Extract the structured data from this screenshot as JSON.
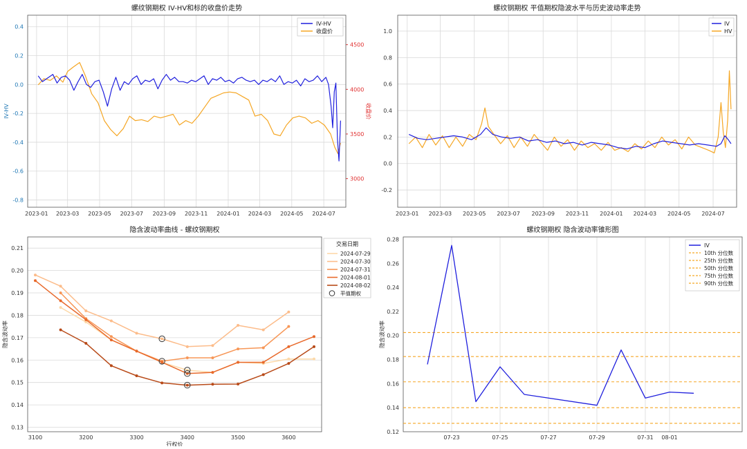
{
  "chart_data": [
    {
      "id": "c1",
      "type": "line",
      "title": "螺纹钢期权 IV-HV和标的收盘价走势",
      "ylabel": "IV-HV",
      "ylabel2": "收盘价",
      "ylim": [
        -0.85,
        0.48
      ],
      "ylim2": [
        2680,
        4830
      ],
      "xlim": [
        "2022-12-15",
        "2024-08-12"
      ],
      "yticks": [
        "-0.8",
        "-0.6",
        "-0.4",
        "-0.2",
        "0.0",
        "0.2",
        "0.4"
      ],
      "ytick_values": [
        -0.8,
        -0.6,
        -0.4,
        -0.2,
        0.0,
        0.2,
        0.4
      ],
      "y2ticks": [
        "3000",
        "3500",
        "4000",
        "4500"
      ],
      "y2tick_values": [
        3000,
        3500,
        4000,
        4500
      ],
      "xticks": [
        "2023-01",
        "2023-03",
        "2023-05",
        "2023-07",
        "2023-09",
        "2023-11",
        "2024-01",
        "2024-03",
        "2024-05",
        "2024-07"
      ],
      "xtick_dates": [
        "2023-01-01",
        "2023-03-01",
        "2023-05-01",
        "2023-07-01",
        "2023-09-01",
        "2023-11-01",
        "2024-01-01",
        "2024-03-01",
        "2024-05-01",
        "2024-07-01"
      ],
      "legend": "top-right",
      "series": [
        {
          "name": "IV-HV",
          "color": "#1f1fdd",
          "axis": "left",
          "x": [
            "2023-01-04",
            "2023-01-12",
            "2023-01-20",
            "2023-02-01",
            "2023-02-09",
            "2023-02-17",
            "2023-02-25",
            "2023-03-05",
            "2023-03-13",
            "2023-03-21",
            "2023-03-29",
            "2023-04-06",
            "2023-04-14",
            "2023-04-22",
            "2023-04-30",
            "2023-05-08",
            "2023-05-16",
            "2023-05-24",
            "2023-06-01",
            "2023-06-09",
            "2023-06-17",
            "2023-06-25",
            "2023-07-03",
            "2023-07-11",
            "2023-07-19",
            "2023-07-27",
            "2023-08-04",
            "2023-08-12",
            "2023-08-20",
            "2023-08-28",
            "2023-09-05",
            "2023-09-13",
            "2023-09-21",
            "2023-09-29",
            "2023-10-07",
            "2023-10-15",
            "2023-10-23",
            "2023-10-31",
            "2023-11-08",
            "2023-11-16",
            "2023-11-24",
            "2023-12-02",
            "2023-12-10",
            "2023-12-18",
            "2023-12-26",
            "2024-01-03",
            "2024-01-11",
            "2024-01-19",
            "2024-01-27",
            "2024-02-04",
            "2024-02-12",
            "2024-02-20",
            "2024-02-28",
            "2024-03-07",
            "2024-03-15",
            "2024-03-23",
            "2024-03-31",
            "2024-04-08",
            "2024-04-16",
            "2024-04-24",
            "2024-05-02",
            "2024-05-10",
            "2024-05-18",
            "2024-05-26",
            "2024-06-03",
            "2024-06-11",
            "2024-06-19",
            "2024-06-27",
            "2024-07-05",
            "2024-07-10",
            "2024-07-15",
            "2024-07-18",
            "2024-07-21",
            "2024-07-24",
            "2024-07-27",
            "2024-07-30",
            "2024-08-02"
          ],
          "y": [
            0.06,
            0.02,
            0.04,
            0.07,
            0.01,
            0.05,
            0.06,
            0.03,
            -0.04,
            0.02,
            0.07,
            0.0,
            -0.02,
            0.02,
            0.03,
            -0.05,
            -0.15,
            -0.03,
            0.05,
            -0.04,
            0.02,
            0.0,
            0.04,
            0.06,
            0.0,
            0.03,
            0.02,
            0.04,
            -0.03,
            0.03,
            0.07,
            0.03,
            0.05,
            0.02,
            0.02,
            0.01,
            0.03,
            0.02,
            0.04,
            0.06,
            0.0,
            0.04,
            0.03,
            0.05,
            0.02,
            0.03,
            0.01,
            0.04,
            0.05,
            0.03,
            0.02,
            0.03,
            0.0,
            0.03,
            0.02,
            0.04,
            0.02,
            0.06,
            0.0,
            0.02,
            0.01,
            0.03,
            -0.01,
            0.04,
            0.02,
            0.03,
            0.06,
            0.02,
            0.05,
            0.0,
            -0.15,
            -0.3,
            -0.05,
            0.01,
            -0.38,
            -0.53,
            -0.25
          ]
        },
        {
          "name": "收盘价",
          "color": "#f5a623",
          "axis": "right",
          "x": [
            "2023-01-04",
            "2023-01-15",
            "2023-01-27",
            "2023-02-08",
            "2023-02-20",
            "2023-03-01",
            "2023-03-12",
            "2023-03-24",
            "2023-04-04",
            "2023-04-16",
            "2023-04-28",
            "2023-05-10",
            "2023-05-22",
            "2023-06-03",
            "2023-06-15",
            "2023-06-27",
            "2023-07-08",
            "2023-07-20",
            "2023-08-01",
            "2023-08-13",
            "2023-08-25",
            "2023-09-06",
            "2023-09-18",
            "2023-09-30",
            "2023-10-12",
            "2023-10-24",
            "2023-11-05",
            "2023-11-17",
            "2023-11-29",
            "2023-12-11",
            "2023-12-23",
            "2024-01-04",
            "2024-01-16",
            "2024-01-28",
            "2024-02-09",
            "2024-02-21",
            "2024-03-04",
            "2024-03-16",
            "2024-03-28",
            "2024-04-09",
            "2024-04-21",
            "2024-05-03",
            "2024-05-15",
            "2024-05-27",
            "2024-06-08",
            "2024-06-20",
            "2024-07-02",
            "2024-07-14",
            "2024-07-22",
            "2024-07-28",
            "2024-08-02"
          ],
          "y": [
            4050,
            4120,
            4100,
            4150,
            4080,
            4200,
            4250,
            4300,
            4150,
            3950,
            3850,
            3650,
            3550,
            3480,
            3560,
            3700,
            3650,
            3660,
            3640,
            3700,
            3680,
            3700,
            3720,
            3600,
            3650,
            3620,
            3700,
            3800,
            3900,
            3930,
            3960,
            3970,
            3960,
            3920,
            3880,
            3700,
            3720,
            3650,
            3500,
            3480,
            3600,
            3680,
            3700,
            3680,
            3620,
            3650,
            3600,
            3500,
            3350,
            3280,
            3400
          ]
        }
      ]
    },
    {
      "id": "c2",
      "type": "line",
      "title": "螺纹钢期权 平值期权隐波水平与历史波动率走势",
      "ylim": [
        -0.33,
        1.12
      ],
      "xlim": [
        "2022-12-15",
        "2024-08-12"
      ],
      "yticks": [
        "-0.2",
        "0.0",
        "0.2",
        "0.4",
        "0.6",
        "0.8",
        "1.0"
      ],
      "ytick_values": [
        -0.2,
        0.0,
        0.2,
        0.4,
        0.6,
        0.8,
        1.0
      ],
      "xticks": [
        "2023-01",
        "2023-03",
        "2023-05",
        "2023-07",
        "2023-09",
        "2023-11",
        "2024-01",
        "2024-03",
        "2024-05",
        "2024-07"
      ],
      "xtick_dates": [
        "2023-01-01",
        "2023-03-01",
        "2023-05-01",
        "2023-07-01",
        "2023-09-01",
        "2023-11-01",
        "2024-01-01",
        "2024-03-01",
        "2024-05-01",
        "2024-07-01"
      ],
      "legend": "top-right",
      "series": [
        {
          "name": "IV",
          "color": "#1f1fdd",
          "x": [
            "2023-01-04",
            "2023-01-20",
            "2023-02-05",
            "2023-02-21",
            "2023-03-09",
            "2023-03-25",
            "2023-04-10",
            "2023-04-26",
            "2023-05-12",
            "2023-05-22",
            "2023-06-03",
            "2023-06-19",
            "2023-07-05",
            "2023-07-21",
            "2023-08-06",
            "2023-08-22",
            "2023-09-07",
            "2023-09-23",
            "2023-10-09",
            "2023-10-25",
            "2023-11-10",
            "2023-11-26",
            "2023-12-12",
            "2023-12-28",
            "2024-01-13",
            "2024-01-29",
            "2024-02-14",
            "2024-03-01",
            "2024-03-17",
            "2024-04-02",
            "2024-04-18",
            "2024-05-04",
            "2024-05-20",
            "2024-06-05",
            "2024-06-21",
            "2024-07-07",
            "2024-07-15",
            "2024-07-22",
            "2024-07-28",
            "2024-08-02"
          ],
          "y": [
            0.22,
            0.19,
            0.18,
            0.19,
            0.2,
            0.21,
            0.2,
            0.18,
            0.22,
            0.27,
            0.22,
            0.2,
            0.19,
            0.2,
            0.17,
            0.18,
            0.16,
            0.17,
            0.15,
            0.16,
            0.14,
            0.16,
            0.15,
            0.14,
            0.12,
            0.11,
            0.13,
            0.12,
            0.15,
            0.17,
            0.16,
            0.15,
            0.14,
            0.15,
            0.14,
            0.13,
            0.15,
            0.21,
            0.18,
            0.15
          ]
        },
        {
          "name": "HV",
          "color": "#f5a623",
          "x": [
            "2023-01-04",
            "2023-01-16",
            "2023-01-28",
            "2023-02-09",
            "2023-02-21",
            "2023-03-05",
            "2023-03-17",
            "2023-03-29",
            "2023-04-10",
            "2023-04-22",
            "2023-05-04",
            "2023-05-14",
            "2023-05-20",
            "2023-05-26",
            "2023-06-05",
            "2023-06-17",
            "2023-06-29",
            "2023-07-11",
            "2023-07-23",
            "2023-08-04",
            "2023-08-16",
            "2023-08-28",
            "2023-09-09",
            "2023-09-21",
            "2023-10-03",
            "2023-10-15",
            "2023-10-27",
            "2023-11-08",
            "2023-11-20",
            "2023-12-02",
            "2023-12-14",
            "2023-12-26",
            "2024-01-07",
            "2024-01-19",
            "2024-01-31",
            "2024-02-12",
            "2024-02-24",
            "2024-03-07",
            "2024-03-19",
            "2024-03-31",
            "2024-04-12",
            "2024-04-24",
            "2024-05-06",
            "2024-05-18",
            "2024-05-30",
            "2024-06-11",
            "2024-06-23",
            "2024-07-03",
            "2024-07-10",
            "2024-07-15",
            "2024-07-19",
            "2024-07-23",
            "2024-07-27",
            "2024-07-30",
            "2024-08-02"
          ],
          "y": [
            0.15,
            0.2,
            0.12,
            0.22,
            0.14,
            0.21,
            0.12,
            0.2,
            0.13,
            0.22,
            0.18,
            0.3,
            0.42,
            0.28,
            0.22,
            0.15,
            0.21,
            0.12,
            0.2,
            0.13,
            0.22,
            0.16,
            0.1,
            0.2,
            0.13,
            0.18,
            0.1,
            0.17,
            0.12,
            0.15,
            0.1,
            0.16,
            0.1,
            0.12,
            0.09,
            0.15,
            0.11,
            0.17,
            0.12,
            0.2,
            0.14,
            0.18,
            0.11,
            0.2,
            0.14,
            0.12,
            0.1,
            0.08,
            0.2,
            0.46,
            0.24,
            0.12,
            0.33,
            0.7,
            0.41
          ]
        }
      ]
    },
    {
      "id": "c3",
      "type": "line",
      "title": "隐含波动率曲线 - 螺纹钢期权",
      "xlabel": "行权价",
      "ylabel": "隐含波动率",
      "xlim": [
        3085,
        3665
      ],
      "ylim": [
        0.128,
        0.215
      ],
      "xticks": [
        "3100",
        "3200",
        "3300",
        "3400",
        "3500",
        "3600"
      ],
      "xtick_values": [
        3100,
        3200,
        3300,
        3400,
        3500,
        3600
      ],
      "yticks": [
        "0.13",
        "0.14",
        "0.15",
        "0.16",
        "0.17",
        "0.18",
        "0.19",
        "0.20",
        "0.21"
      ],
      "ytick_values": [
        0.13,
        0.14,
        0.15,
        0.16,
        0.17,
        0.18,
        0.19,
        0.2,
        0.21
      ],
      "legend_title": "交易日期",
      "legend": "outside-right",
      "atm_label": "平值期权",
      "series": [
        {
          "name": "2024-07-29",
          "color": "#fdd9a8",
          "x": [
            3150,
            3200,
            3250,
            3300,
            3350,
            3400,
            3450,
            3500,
            3550,
            3600,
            3650
          ],
          "y": [
            0.1835,
            0.177,
            0.169,
            0.164,
            0.159,
            0.1555,
            0.1545,
            0.159,
            0.1585,
            0.1605,
            0.1605
          ],
          "atm": [
            3400,
            0.1555
          ]
        },
        {
          "name": "2024-07-30",
          "color": "#fcbc8a",
          "x": [
            3100,
            3150,
            3200,
            3250,
            3300,
            3350,
            3400,
            3450,
            3500,
            3550,
            3600
          ],
          "y": [
            0.198,
            0.193,
            0.182,
            0.1775,
            0.172,
            0.1695,
            0.166,
            0.1665,
            0.1755,
            0.1735,
            0.1815
          ],
          "atm": [
            3350,
            0.1695
          ]
        },
        {
          "name": "2024-07-31",
          "color": "#f79656",
          "x": [
            3150,
            3200,
            3250,
            3300,
            3350,
            3400,
            3450,
            3500,
            3550,
            3600
          ],
          "y": [
            0.19,
            0.1785,
            0.1705,
            0.164,
            0.1595,
            0.161,
            0.161,
            0.165,
            0.1655,
            0.175
          ],
          "atm": [
            3350,
            0.1595
          ]
        },
        {
          "name": "2024-08-01",
          "color": "#e8692b",
          "x": [
            3100,
            3150,
            3200,
            3250,
            3300,
            3350,
            3400,
            3450,
            3500,
            3550,
            3600,
            3650
          ],
          "y": [
            0.1955,
            0.1865,
            0.178,
            0.169,
            0.164,
            0.159,
            0.154,
            0.1545,
            0.159,
            0.159,
            0.166,
            0.1705
          ],
          "atm": [
            3400,
            0.154
          ]
        },
        {
          "name": "2024-08-02",
          "color": "#b84a18",
          "x": [
            3150,
            3200,
            3250,
            3300,
            3350,
            3400,
            3450,
            3500,
            3550,
            3600,
            3650
          ],
          "y": [
            0.1735,
            0.1675,
            0.1575,
            0.153,
            0.1498,
            0.1488,
            0.1492,
            0.1493,
            0.1535,
            0.1585,
            0.166
          ],
          "atm": [
            3400,
            0.1488
          ]
        }
      ]
    },
    {
      "id": "c4",
      "type": "line",
      "title": "螺纹钢期权 隐含波动率锥形图",
      "ylabel": "隐含波动率",
      "xlim": [
        "2024-07-21",
        "2024-08-04"
      ],
      "ylim": [
        0.12,
        0.282
      ],
      "yticks": [
        "0.12",
        "0.14",
        "0.16",
        "0.18",
        "0.20",
        "0.22",
        "0.24",
        "0.26",
        "0.28"
      ],
      "ytick_values": [
        0.12,
        0.14,
        0.16,
        0.18,
        0.2,
        0.22,
        0.24,
        0.26,
        0.28
      ],
      "xticks": [
        "07-23",
        "07-25",
        "07-27",
        "07-29",
        "07-31",
        "08-01"
      ],
      "xtick_dates": [
        "2024-07-23",
        "2024-07-25",
        "2024-07-27",
        "2024-07-29",
        "2024-07-31",
        "2024-08-01"
      ],
      "legend": "top-right",
      "series": [
        {
          "name": "IV",
          "color": "#1f1fdd",
          "x": [
            "2024-07-22",
            "2024-07-23",
            "2024-07-24",
            "2024-07-25",
            "2024-07-26",
            "2024-07-29",
            "2024-07-30",
            "2024-07-31",
            "2024-08-01",
            "2024-08-02"
          ],
          "y": [
            0.176,
            0.275,
            0.145,
            0.174,
            0.151,
            0.142,
            0.188,
            0.148,
            0.153,
            0.152
          ]
        }
      ],
      "percentiles": [
        {
          "name": "10th 分位数",
          "value": 0.127
        },
        {
          "name": "25th 分位数",
          "value": 0.14
        },
        {
          "name": "50th 分位数",
          "value": 0.1615
        },
        {
          "name": "75th 分位数",
          "value": 0.1825
        },
        {
          "name": "90th 分位数",
          "value": 0.2025
        }
      ],
      "percentile_color": "#f5a623"
    }
  ]
}
